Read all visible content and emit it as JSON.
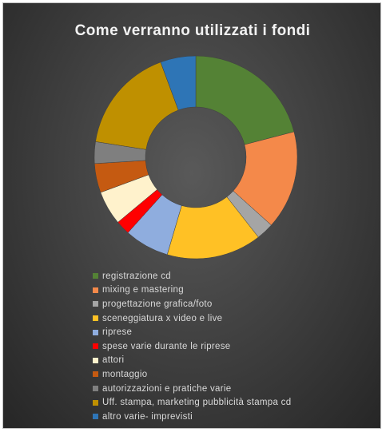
{
  "chart_data": {
    "type": "pie",
    "subtype": "doughnut",
    "title": "Come verranno utilizzati i fondi",
    "legend_position": "bottom",
    "start_angle_deg": 0,
    "direction": "clockwise",
    "slices": [
      {
        "label": "registrazione cd",
        "value": 21.2,
        "color": "#548235"
      },
      {
        "label": "mixing e mastering",
        "value": 15.9,
        "color": "#f4894a"
      },
      {
        "label": "progettazione grafica/foto",
        "value": 2.8,
        "color": "#a5a5a5"
      },
      {
        "label": "sceneggiatura x video e live",
        "value": 15.3,
        "color": "#ffc125"
      },
      {
        "label": "riprese",
        "value": 7.2,
        "color": "#8fadde"
      },
      {
        "label": "spese varie durante le riprese",
        "value": 2.3,
        "color": "#ff0000"
      },
      {
        "label": "attori",
        "value": 5.5,
        "color": "#fff2cc"
      },
      {
        "label": "montaggio",
        "value": 4.7,
        "color": "#c55a11"
      },
      {
        "label": "autorizzazioni e pratiche varie",
        "value": 3.5,
        "color": "#7f7f7f"
      },
      {
        "label": "Uff. stampa, marketing pubblicità stampa cd",
        "value": 17.1,
        "color": "#bf9000"
      },
      {
        "label": "altro varie- imprevisti",
        "value": 5.7,
        "color": "#2e75b6"
      }
    ]
  }
}
